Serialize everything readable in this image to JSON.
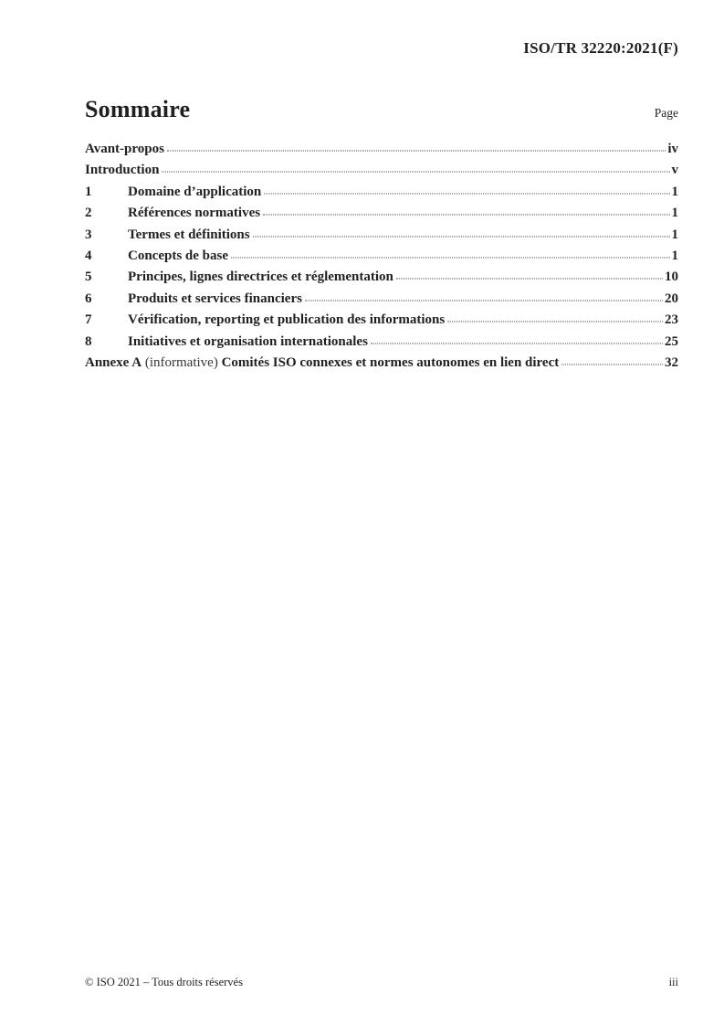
{
  "colors": {
    "text": "#231f20",
    "leader_dots": "#4f4d52"
  },
  "header": {
    "doc_ref": "ISO/TR 32220:2021(F)"
  },
  "toc": {
    "title": "Sommaire",
    "page_label": "Page",
    "entries": [
      {
        "num": "",
        "label": "Avant-propos",
        "page": "iv"
      },
      {
        "num": "",
        "label": "Introduction",
        "page": "v"
      },
      {
        "num": "1",
        "label": "Domaine d’application",
        "page": "1"
      },
      {
        "num": "2",
        "label": "Références normatives",
        "page": "1"
      },
      {
        "num": "3",
        "label": "Termes et définitions",
        "page": "1"
      },
      {
        "num": "4",
        "label": "Concepts de base",
        "page": "1"
      },
      {
        "num": "5",
        "label": "Principes, lignes directrices et réglementation",
        "page": "10"
      },
      {
        "num": "6",
        "label": "Produits et services financiers",
        "page": "20"
      },
      {
        "num": "7",
        "label": "Vérification, reporting et publication des informations",
        "page": "23"
      },
      {
        "num": "8",
        "label": "Initiatives et organisation internationales",
        "page": "25"
      },
      {
        "bold1": "Annexe A",
        "mid": " (informative) ",
        "bold2": "Comités ISO connexes et normes autonomes en lien direct",
        "page": "32"
      }
    ]
  },
  "footer": {
    "copyright": "© ISO 2021 – Tous droits réservés",
    "page_num": "iii"
  }
}
